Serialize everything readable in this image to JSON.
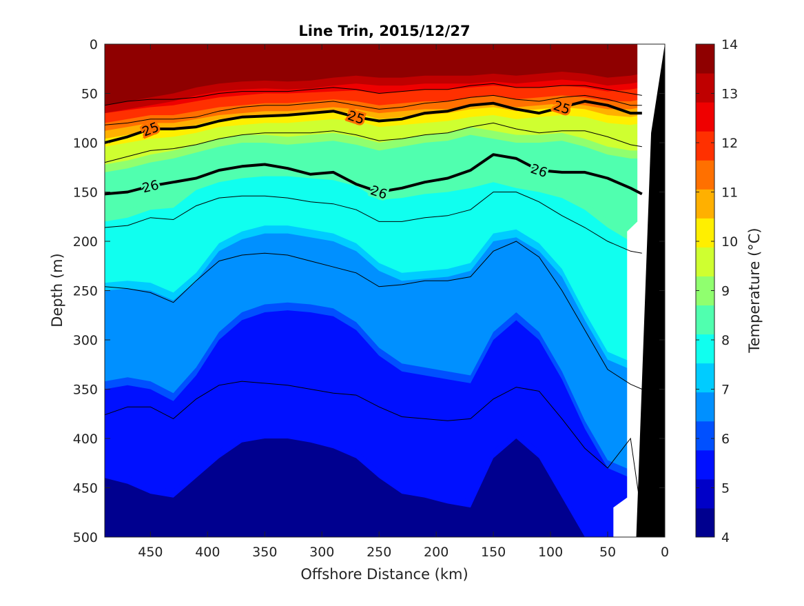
{
  "chart_data": {
    "type": "heatmap",
    "title": "Line Trin, 2015/12/27",
    "xlabel": "Offshore Distance (km)",
    "ylabel": "Depth (m)",
    "xlim": [
      490,
      0
    ],
    "ylim": [
      0,
      500
    ],
    "x_direction": "reversed",
    "y_direction": "depth-down",
    "x_ticks": [
      "450",
      "400",
      "350",
      "300",
      "250",
      "200",
      "150",
      "100",
      "50",
      "0"
    ],
    "y_ticks": [
      "0",
      "50",
      "100",
      "150",
      "200",
      "250",
      "300",
      "350",
      "400",
      "450",
      "500"
    ],
    "colorbar": {
      "label": "Temperature (°C)",
      "range": [
        4,
        14
      ],
      "ticks": [
        "4",
        "5",
        "6",
        "7",
        "8",
        "9",
        "10",
        "11",
        "12",
        "13",
        "14"
      ],
      "colors": [
        "#00008f",
        "#0000c8",
        "#0010ff",
        "#0050ff",
        "#0090ff",
        "#00ccff",
        "#10ffef",
        "#50ffaf",
        "#90ff6f",
        "#cfff30",
        "#ffef00",
        "#ffb000",
        "#ff7000",
        "#ff3000",
        "#ef0000",
        "#bf0000",
        "#8f0000"
      ]
    },
    "x_stations": [
      490,
      470,
      450,
      430,
      410,
      390,
      370,
      350,
      330,
      310,
      290,
      270,
      250,
      230,
      210,
      190,
      170,
      150,
      130,
      110,
      90,
      70,
      50,
      30,
      20
    ],
    "isotherms_depth_m": {
      "13": [
        70,
        66,
        62,
        58,
        52,
        48,
        46,
        45,
        46,
        45,
        42,
        40,
        42,
        42,
        40,
        40,
        40,
        38,
        40,
        38,
        36,
        38,
        42,
        40,
        38
      ],
      "12": [
        78,
        75,
        72,
        70,
        66,
        62,
        60,
        58,
        58,
        57,
        56,
        55,
        58,
        56,
        54,
        54,
        52,
        50,
        52,
        52,
        50,
        52,
        56,
        54,
        52
      ],
      "11": [
        88,
        84,
        80,
        80,
        76,
        72,
        70,
        68,
        68,
        66,
        64,
        66,
        70,
        68,
        66,
        66,
        62,
        60,
        64,
        62,
        60,
        62,
        66,
        66,
        64
      ],
      "10": [
        104,
        100,
        96,
        94,
        90,
        84,
        82,
        80,
        80,
        78,
        76,
        78,
        84,
        82,
        80,
        78,
        74,
        72,
        76,
        74,
        72,
        74,
        80,
        82,
        80
      ],
      "9": [
        130,
        126,
        120,
        116,
        110,
        104,
        100,
        100,
        102,
        100,
        98,
        102,
        108,
        104,
        100,
        98,
        92,
        96,
        100,
        100,
        98,
        104,
        112,
        116,
        116
      ],
      "8": [
        180,
        176,
        168,
        166,
        148,
        140,
        136,
        134,
        134,
        136,
        138,
        144,
        158,
        156,
        152,
        150,
        146,
        140,
        146,
        150,
        156,
        168,
        186,
        200,
        205
      ],
      "7": [
        250,
        248,
        250,
        260,
        240,
        210,
        198,
        192,
        192,
        196,
        200,
        210,
        230,
        240,
        238,
        236,
        230,
        200,
        196,
        210,
        236,
        280,
        320,
        330,
        330
      ],
      "6": [
        350,
        346,
        350,
        362,
        336,
        300,
        280,
        272,
        270,
        272,
        276,
        290,
        316,
        332,
        336,
        340,
        344,
        300,
        280,
        300,
        340,
        390,
        430,
        440,
        440
      ],
      "5": [
        440,
        446,
        456,
        460,
        440,
        420,
        404,
        400,
        400,
        404,
        410,
        420,
        440,
        456,
        460,
        466,
        470,
        420,
        400,
        420,
        460,
        500,
        520,
        520,
        520
      ]
    },
    "isopycnals": [
      {
        "label": "25",
        "depth_m": [
          100,
          94,
          86,
          86,
          84,
          78,
          74,
          73,
          72,
          70,
          68,
          74,
          78,
          76,
          70,
          68,
          62,
          60,
          66,
          70,
          64,
          58,
          62,
          70,
          70
        ]
      },
      {
        "label": "26",
        "depth_m": [
          152,
          150,
          144,
          140,
          136,
          128,
          124,
          122,
          126,
          132,
          130,
          142,
          150,
          146,
          140,
          136,
          128,
          112,
          116,
          128,
          130,
          130,
          136,
          146,
          152
        ]
      }
    ],
    "thin_contour_depths_m": [
      [
        62,
        58,
        56,
        56,
        54,
        50,
        48,
        48,
        48,
        46,
        44,
        46,
        50,
        48,
        46,
        46,
        42,
        40,
        44,
        44,
        42,
        42,
        46,
        50,
        52
      ],
      [
        82,
        80,
        76,
        76,
        74,
        68,
        64,
        62,
        62,
        60,
        58,
        62,
        66,
        64,
        60,
        58,
        54,
        52,
        56,
        58,
        54,
        52,
        56,
        62,
        62
      ],
      [
        120,
        114,
        108,
        106,
        102,
        96,
        92,
        90,
        90,
        90,
        88,
        92,
        98,
        96,
        92,
        90,
        84,
        80,
        86,
        90,
        88,
        88,
        94,
        102,
        104
      ],
      [
        186,
        184,
        176,
        178,
        164,
        156,
        154,
        154,
        156,
        160,
        162,
        168,
        180,
        180,
        176,
        174,
        168,
        150,
        150,
        160,
        174,
        186,
        200,
        210,
        212
      ],
      [
        246,
        248,
        252,
        262,
        240,
        220,
        214,
        212,
        214,
        220,
        226,
        232,
        246,
        244,
        240,
        240,
        236,
        210,
        200,
        216,
        250,
        290,
        330,
        345,
        350
      ],
      [
        376,
        368,
        368,
        380,
        360,
        346,
        342,
        344,
        346,
        350,
        354,
        356,
        368,
        378,
        380,
        382,
        380,
        360,
        348,
        352,
        380,
        410,
        430,
        400,
        480
      ]
    ]
  }
}
